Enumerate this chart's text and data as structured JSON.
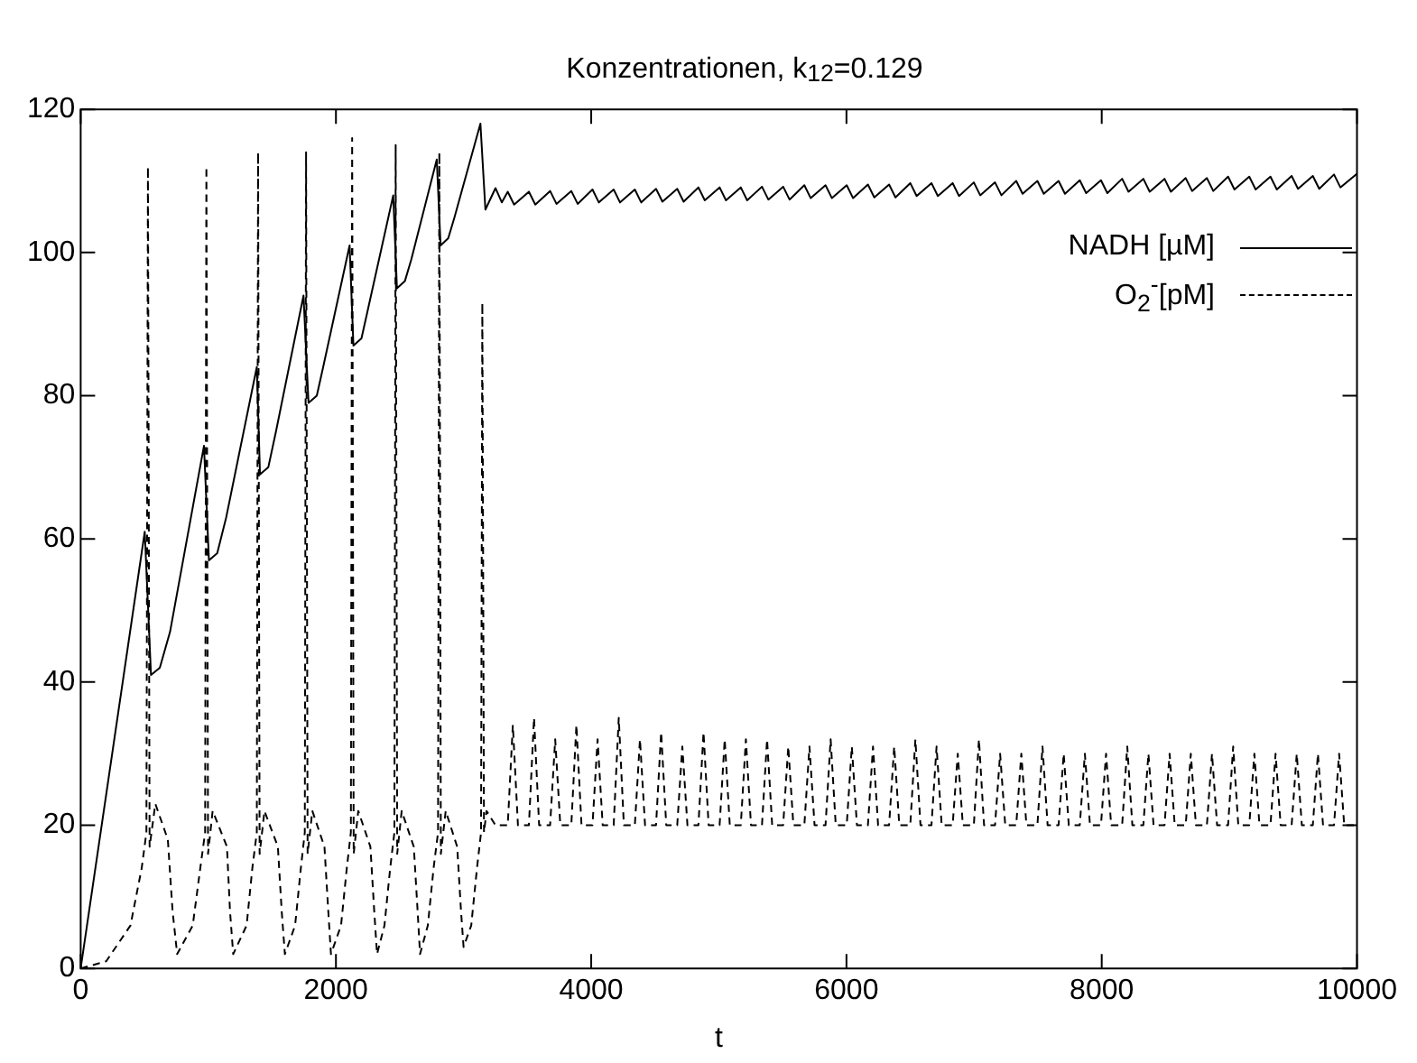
{
  "chart_data": {
    "type": "line",
    "title": "Konzentrationen, k$_{12}$=0.129",
    "xlabel": "t",
    "xlim": [
      0,
      10000
    ],
    "xticks": [
      0,
      2000,
      4000,
      6000,
      8000,
      10000
    ],
    "ylim": [
      0,
      120
    ],
    "yticks": [
      0,
      20,
      40,
      60,
      80,
      100,
      120
    ],
    "legend": "top right",
    "series": [
      {
        "name": "NADH [µM]",
        "color": "#000000",
        "line_style": "solid",
        "x": [
          0,
          502,
          551,
          620,
          700,
          966,
          1005,
          1070,
          1140,
          1380,
          1405,
          1470,
          1530,
          1746,
          1785,
          1850,
          1900,
          2107,
          2137,
          2200,
          2250,
          2449,
          2478,
          2540,
          2590,
          2790,
          2820,
          2880,
          2930,
          3132,
          3171,
          3250,
          3300,
          3346,
          3396,
          3512,
          3562,
          3678,
          3728,
          3844,
          3894,
          4010,
          4060,
          4176,
          4226,
          4342,
          4392,
          4508,
          4558,
          4674,
          4724,
          4840,
          4890,
          5006,
          5056,
          5172,
          5222,
          5338,
          5388,
          5504,
          5554,
          5670,
          5720,
          5836,
          5886,
          6002,
          6052,
          6168,
          6218,
          6334,
          6384,
          6500,
          6550,
          6666,
          6716,
          6832,
          6882,
          6998,
          7048,
          7164,
          7214,
          7330,
          7380,
          7496,
          7546,
          7662,
          7712,
          7828,
          7878,
          7994,
          8044,
          8160,
          8210,
          8326,
          8376,
          8492,
          8542,
          8658,
          8708,
          8824,
          8874,
          8990,
          9040,
          9156,
          9206,
          9322,
          9372,
          9488,
          9538,
          9654,
          9704,
          9820,
          9870,
          10000
        ],
        "values": [
          0,
          61,
          41,
          42,
          47,
          73,
          57,
          58,
          63,
          84,
          69,
          70,
          75,
          94,
          79,
          80,
          84,
          101,
          87,
          88,
          92,
          108,
          95,
          96,
          99,
          113,
          101,
          102,
          105,
          118,
          106,
          109,
          107,
          108.5,
          106.7,
          108.5,
          106.7,
          108.6,
          106.8,
          108.6,
          106.8,
          108.8,
          107,
          108.8,
          107,
          108.8,
          107,
          108.9,
          107.1,
          108.9,
          107.1,
          109.1,
          107.3,
          109.1,
          107.3,
          109.1,
          107.3,
          109.2,
          107.4,
          109.2,
          107.4,
          109.4,
          107.6,
          109.4,
          107.6,
          109.4,
          107.6,
          109.5,
          107.7,
          109.5,
          107.7,
          109.7,
          107.9,
          109.7,
          107.9,
          109.7,
          107.9,
          109.8,
          108,
          109.8,
          108,
          110,
          108.2,
          110,
          108.2,
          110,
          108.2,
          110.1,
          108.3,
          110.1,
          108.3,
          110.3,
          108.5,
          110.3,
          108.5,
          110.3,
          108.5,
          110.4,
          108.6,
          110.4,
          108.6,
          110.6,
          108.8,
          110.6,
          108.8,
          110.6,
          108.8,
          110.7,
          108.9,
          110.7,
          108.9,
          110.9,
          109.1,
          111
        ]
      },
      {
        "name": "O$_{2}$$^{-}$[pM]",
        "color": "#000000",
        "line_style": "dashed",
        "x": [
          0,
          200,
          390,
          478,
          515,
          527,
          540,
          585,
          683,
          720,
          756,
          878,
          937,
          975,
          985,
          998,
          1034,
          1146,
          1170,
          1195,
          1300,
          1345,
          1380,
          1390,
          1402,
          1440,
          1545,
          1575,
          1600,
          1680,
          1725,
          1756,
          1766,
          1778,
          1815,
          1910,
          1940,
          1961,
          2040,
          2085,
          2117,
          2127,
          2139,
          2175,
          2270,
          2300,
          2322,
          2380,
          2425,
          2458,
          2468,
          2480,
          2515,
          2610,
          2640,
          2659,
          2720,
          2765,
          2800,
          2810,
          2822,
          2860,
          2950,
          2980,
          3000,
          3060,
          3105,
          3137,
          3147,
          3160,
          3180,
          3250,
          3346,
          3386,
          3426,
          3512,
          3552,
          3592,
          3678,
          3718,
          3758,
          3844,
          3884,
          3924,
          4010,
          4050,
          4090,
          4176,
          4216,
          4256,
          4342,
          4382,
          4422,
          4508,
          4548,
          4588,
          4674,
          4714,
          4754,
          4840,
          4880,
          4920,
          5006,
          5046,
          5086,
          5172,
          5212,
          5252,
          5338,
          5378,
          5418,
          5504,
          5544,
          5584,
          5670,
          5710,
          5750,
          5836,
          5876,
          5916,
          6002,
          6042,
          6082,
          6168,
          6208,
          6248,
          6334,
          6374,
          6414,
          6500,
          6540,
          6580,
          6666,
          6706,
          6746,
          6832,
          6872,
          6912,
          6998,
          7038,
          7078,
          7164,
          7204,
          7244,
          7330,
          7370,
          7410,
          7496,
          7536,
          7576,
          7662,
          7702,
          7742,
          7828,
          7868,
          7908,
          7994,
          8034,
          8074,
          8160,
          8200,
          8240,
          8326,
          8366,
          8406,
          8492,
          8532,
          8572,
          8658,
          8698,
          8738,
          8824,
          8864,
          8904,
          8990,
          9030,
          9070,
          9156,
          9196,
          9236,
          9322,
          9362,
          9402,
          9488,
          9528,
          9568,
          9654,
          9694,
          9734,
          9820,
          9860,
          9900,
          10000
        ],
        "values": [
          0,
          1,
          6,
          14,
          19,
          112,
          17,
          23,
          18,
          8,
          2,
          6,
          14,
          19,
          112,
          16,
          22,
          17,
          8,
          2,
          6,
          14,
          19,
          114,
          16,
          22,
          17,
          8,
          2,
          6,
          14,
          19,
          114,
          16,
          22,
          17,
          8,
          2,
          6,
          14,
          19,
          116,
          16,
          22,
          17,
          8,
          2,
          6,
          14,
          19,
          115,
          16,
          22,
          17,
          8,
          2,
          6,
          14,
          19,
          114,
          16,
          22,
          17,
          8,
          3,
          6,
          14,
          19,
          93,
          19,
          22,
          20,
          20,
          34,
          20,
          20,
          35,
          20,
          20,
          32,
          20,
          20,
          34,
          20,
          20,
          32,
          20,
          20,
          35,
          20,
          20,
          32,
          20,
          20,
          33,
          20,
          20,
          31,
          20,
          20,
          33,
          20,
          20,
          32,
          20,
          20,
          32,
          20,
          20,
          32,
          20,
          20,
          31,
          20,
          20,
          31,
          20,
          20,
          32,
          20,
          20,
          31,
          20,
          20,
          31,
          20,
          20,
          31,
          20,
          20,
          32,
          20,
          20,
          31,
          20,
          20,
          30,
          20,
          20,
          32,
          20,
          20,
          30,
          20,
          20,
          30,
          20,
          20,
          31,
          20,
          20,
          30,
          20,
          20,
          30,
          20,
          20,
          30,
          20,
          20,
          31,
          20,
          20,
          30,
          20,
          20,
          30,
          20,
          20,
          30,
          20,
          20,
          30,
          20,
          20,
          31,
          20,
          20,
          30,
          20,
          20,
          30,
          20,
          20,
          30,
          20,
          20,
          30,
          20,
          20,
          30,
          20,
          20
        ]
      }
    ]
  }
}
